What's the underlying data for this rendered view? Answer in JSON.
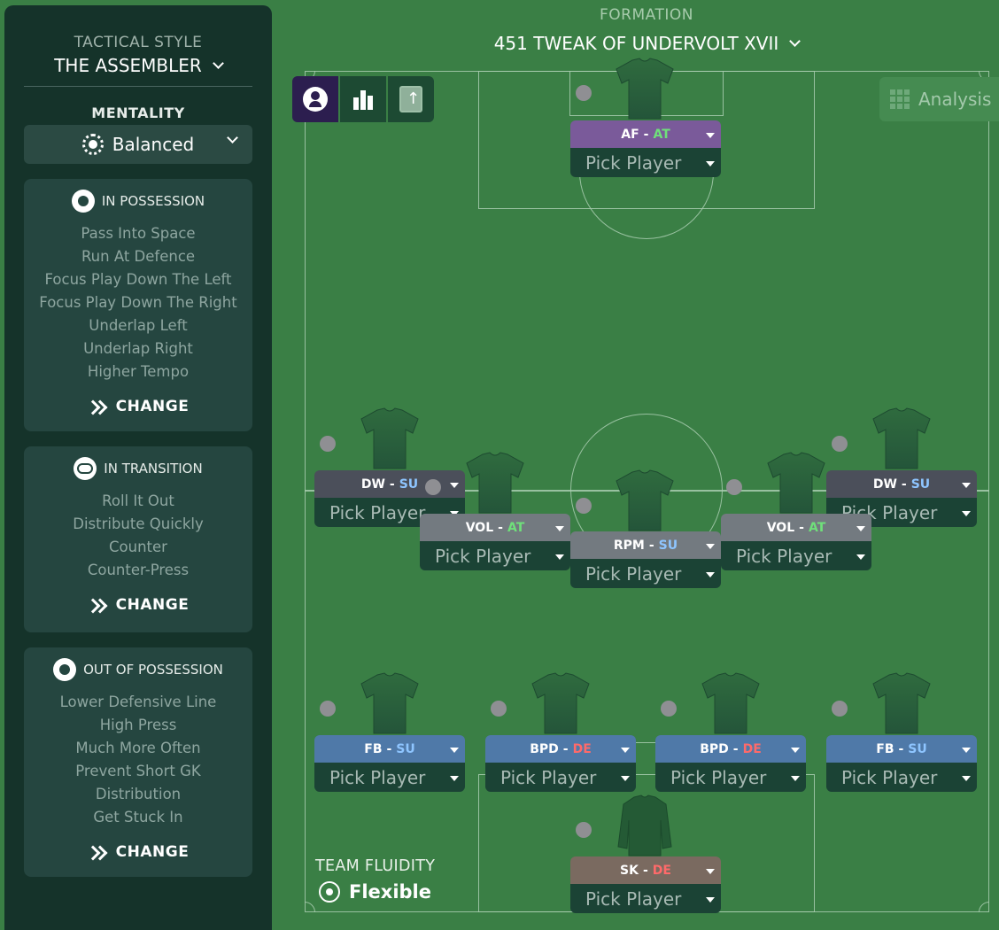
{
  "sidebar": {
    "tactical_style_label": "TACTICAL STYLE",
    "tactical_style_value": "THE ASSEMBLER",
    "mentality_label": "MENTALITY",
    "mentality_value": "Balanced",
    "in_possession": {
      "title": "IN POSSESSION",
      "items": [
        "Pass Into Space",
        "Run At Defence",
        "Focus Play Down The Left",
        "Focus Play Down The Right",
        "Underlap Left",
        "Underlap Right",
        "Higher Tempo"
      ],
      "change_label": "CHANGE"
    },
    "in_transition": {
      "title": "IN TRANSITION",
      "items": [
        "Roll It Out",
        "Distribute Quickly",
        "Counter",
        "Counter-Press"
      ],
      "change_label": "CHANGE"
    },
    "out_of_possession": {
      "title": "OUT OF POSSESSION",
      "items": [
        "Lower Defensive Line",
        "High Press",
        "Much More Often",
        "Prevent Short GK",
        "Distribution",
        "Get Stuck In"
      ],
      "change_label": "CHANGE"
    }
  },
  "formation": {
    "label": "FORMATION",
    "name": "451 TWEAK OF UNDERVOLT XVII"
  },
  "toolbar": {
    "icons": [
      "person-icon",
      "bar-chart-icon",
      "export-icon"
    ]
  },
  "analysis_label": "Analysis",
  "slots": [
    {
      "role": "AF",
      "duty": "AT",
      "player": "Pick Player",
      "color": "#7a5a9a"
    },
    {
      "role": "DW",
      "duty": "SU",
      "player": "Pick Player",
      "color": "#4b4f5a"
    },
    {
      "role": "DW",
      "duty": "SU",
      "player": "Pick Player",
      "color": "#4b4f5a"
    },
    {
      "role": "VOL",
      "duty": "AT",
      "player": "Pick Player",
      "color": "#737a80"
    },
    {
      "role": "RPM",
      "duty": "SU",
      "player": "Pick Player",
      "color": "#737a80"
    },
    {
      "role": "VOL",
      "duty": "AT",
      "player": "Pick Player",
      "color": "#737a80"
    },
    {
      "role": "FB",
      "duty": "SU",
      "player": "Pick Player",
      "color": "#4f79a8"
    },
    {
      "role": "BPD",
      "duty": "DE",
      "player": "Pick Player",
      "color": "#4f79a8"
    },
    {
      "role": "BPD",
      "duty": "DE",
      "player": "Pick Player",
      "color": "#4f79a8"
    },
    {
      "role": "FB",
      "duty": "SU",
      "player": "Pick Player",
      "color": "#4f79a8"
    },
    {
      "role": "SK",
      "duty": "DE",
      "player": "Pick Player",
      "color": "#7a6a60"
    }
  ],
  "team_fluidity": {
    "label": "TEAM FLUIDITY",
    "value": "Flexible"
  }
}
